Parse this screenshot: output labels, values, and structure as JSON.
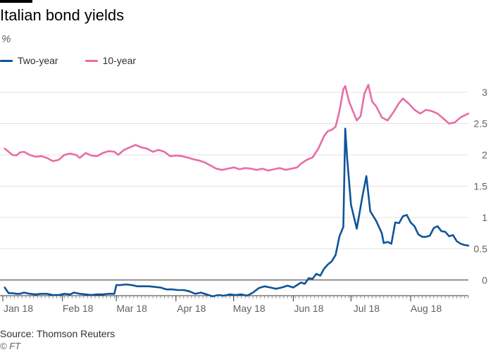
{
  "header": {
    "title": "Italian bond yields",
    "unit": "%"
  },
  "footer": {
    "source": "Source: Thomson Reuters",
    "credit": "© FT"
  },
  "colors": {
    "two_year": "#0f5499",
    "ten_year": "#e86da5",
    "grid": "#e6e2dd",
    "axis_text": "#66605c",
    "zero_line": "#33302e"
  },
  "chart_data": {
    "type": "line",
    "title": "Italian bond yields",
    "ylabel": "%",
    "ylim": [
      -0.25,
      3.35
    ],
    "yticks": [
      0,
      0.5,
      1,
      1.5,
      2,
      2.5,
      3
    ],
    "ytick_labels": [
      "0",
      "0.5",
      "1",
      "1.5",
      "2",
      "2.5",
      "3"
    ],
    "xlim": [
      "2018-01-01",
      "2018-08-31"
    ],
    "xticks": [
      "2018-01-01",
      "2018-02-01",
      "2018-03-01",
      "2018-04-01",
      "2018-05-01",
      "2018-06-01",
      "2018-07-01",
      "2018-08-01"
    ],
    "xtick_labels": [
      "Jan 18",
      "Feb 18",
      "Mar 18",
      "Apr 18",
      "May 18",
      "Jun 18",
      "Jul 18",
      "Aug 18"
    ],
    "grid": true,
    "legend_position": "top-left",
    "series": [
      {
        "name": "Two-year",
        "color": "#0f5499",
        "points": [
          [
            "2018-01-02",
            -0.12
          ],
          [
            "2018-01-04",
            -0.21
          ],
          [
            "2018-01-06",
            -0.21
          ],
          [
            "2018-01-08",
            -0.22
          ],
          [
            "2018-01-10",
            -0.22
          ],
          [
            "2018-01-12",
            -0.2
          ],
          [
            "2018-01-15",
            -0.22
          ],
          [
            "2018-01-18",
            -0.23
          ],
          [
            "2018-01-21",
            -0.22
          ],
          [
            "2018-01-24",
            -0.22
          ],
          [
            "2018-01-27",
            -0.24
          ],
          [
            "2018-01-30",
            -0.24
          ],
          [
            "2018-02-02",
            -0.22
          ],
          [
            "2018-02-05",
            -0.23
          ],
          [
            "2018-02-07",
            -0.2
          ],
          [
            "2018-02-10",
            -0.22
          ],
          [
            "2018-02-13",
            -0.23
          ],
          [
            "2018-02-16",
            -0.24
          ],
          [
            "2018-02-19",
            -0.23
          ],
          [
            "2018-02-22",
            -0.23
          ],
          [
            "2018-02-25",
            -0.22
          ],
          [
            "2018-02-28",
            -0.22
          ],
          [
            "2018-03-01",
            -0.08
          ],
          [
            "2018-03-03",
            -0.08
          ],
          [
            "2018-03-06",
            -0.07
          ],
          [
            "2018-03-09",
            -0.08
          ],
          [
            "2018-03-12",
            -0.1
          ],
          [
            "2018-03-15",
            -0.1
          ],
          [
            "2018-03-18",
            -0.1
          ],
          [
            "2018-03-21",
            -0.11
          ],
          [
            "2018-03-24",
            -0.12
          ],
          [
            "2018-03-27",
            -0.15
          ],
          [
            "2018-03-30",
            -0.15
          ],
          [
            "2018-04-02",
            -0.16
          ],
          [
            "2018-04-05",
            -0.16
          ],
          [
            "2018-04-08",
            -0.18
          ],
          [
            "2018-04-11",
            -0.22
          ],
          [
            "2018-04-14",
            -0.2
          ],
          [
            "2018-04-17",
            -0.23
          ],
          [
            "2018-04-20",
            -0.26
          ],
          [
            "2018-04-23",
            -0.24
          ],
          [
            "2018-04-26",
            -0.25
          ],
          [
            "2018-04-29",
            -0.23
          ],
          [
            "2018-05-02",
            -0.24
          ],
          [
            "2018-05-05",
            -0.23
          ],
          [
            "2018-05-08",
            -0.25
          ],
          [
            "2018-05-11",
            -0.2
          ],
          [
            "2018-05-14",
            -0.13
          ],
          [
            "2018-05-17",
            -0.1
          ],
          [
            "2018-05-20",
            -0.12
          ],
          [
            "2018-05-23",
            -0.14
          ],
          [
            "2018-05-26",
            -0.12
          ],
          [
            "2018-05-29",
            -0.09
          ],
          [
            "2018-06-01",
            -0.12
          ],
          [
            "2018-06-03",
            -0.08
          ],
          [
            "2018-06-05",
            -0.04
          ],
          [
            "2018-06-07",
            -0.06
          ],
          [
            "2018-06-09",
            0.03
          ],
          [
            "2018-06-11",
            0.02
          ],
          [
            "2018-06-13",
            0.1
          ],
          [
            "2018-06-15",
            0.07
          ],
          [
            "2018-06-17",
            0.18
          ],
          [
            "2018-06-19",
            0.25
          ],
          [
            "2018-06-21",
            0.3
          ],
          [
            "2018-06-23",
            0.4
          ],
          [
            "2018-06-24",
            0.55
          ],
          [
            "2018-06-25",
            0.7
          ],
          [
            "2018-06-27",
            0.85
          ],
          [
            "2018-06-28",
            2.42
          ],
          [
            "2018-06-29",
            1.95
          ],
          [
            "2018-07-01",
            1.2
          ],
          [
            "2018-07-04",
            0.82
          ],
          [
            "2018-07-07",
            1.35
          ],
          [
            "2018-07-09",
            1.66
          ],
          [
            "2018-07-11",
            1.1
          ],
          [
            "2018-07-14",
            0.95
          ],
          [
            "2018-07-17",
            0.75
          ],
          [
            "2018-07-18",
            0.59
          ],
          [
            "2018-07-20",
            0.61
          ],
          [
            "2018-07-22",
            0.58
          ],
          [
            "2018-07-24",
            0.92
          ],
          [
            "2018-07-26",
            0.91
          ],
          [
            "2018-07-28",
            1.02
          ],
          [
            "2018-07-30",
            1.04
          ],
          [
            "2018-08-01",
            0.92
          ],
          [
            "2018-08-03",
            0.86
          ],
          [
            "2018-08-05",
            0.73
          ],
          [
            "2018-08-07",
            0.69
          ],
          [
            "2018-08-09",
            0.69
          ],
          [
            "2018-08-11",
            0.71
          ],
          [
            "2018-08-13",
            0.83
          ],
          [
            "2018-08-15",
            0.86
          ],
          [
            "2018-08-17",
            0.78
          ],
          [
            "2018-08-19",
            0.77
          ],
          [
            "2018-08-21",
            0.7
          ],
          [
            "2018-08-23",
            0.72
          ],
          [
            "2018-08-25",
            0.62
          ],
          [
            "2018-08-27",
            0.58
          ],
          [
            "2018-08-29",
            0.56
          ],
          [
            "2018-08-31",
            0.55
          ]
        ]
      },
      {
        "name": "10-year",
        "color": "#e86da5",
        "points": [
          [
            "2018-01-02",
            2.1
          ],
          [
            "2018-01-04",
            2.05
          ],
          [
            "2018-01-06",
            2.0
          ],
          [
            "2018-01-08",
            1.99
          ],
          [
            "2018-01-10",
            2.04
          ],
          [
            "2018-01-12",
            2.05
          ],
          [
            "2018-01-15",
            2.0
          ],
          [
            "2018-01-18",
            1.97
          ],
          [
            "2018-01-21",
            1.98
          ],
          [
            "2018-01-24",
            1.95
          ],
          [
            "2018-01-27",
            1.9
          ],
          [
            "2018-01-30",
            1.92
          ],
          [
            "2018-02-02",
            2.0
          ],
          [
            "2018-02-05",
            2.02
          ],
          [
            "2018-02-08",
            2.0
          ],
          [
            "2018-02-10",
            1.95
          ],
          [
            "2018-02-13",
            2.03
          ],
          [
            "2018-02-16",
            1.99
          ],
          [
            "2018-02-19",
            1.98
          ],
          [
            "2018-02-22",
            2.03
          ],
          [
            "2018-02-25",
            2.06
          ],
          [
            "2018-02-28",
            2.05
          ],
          [
            "2018-03-02",
            2.0
          ],
          [
            "2018-03-05",
            2.08
          ],
          [
            "2018-03-08",
            2.12
          ],
          [
            "2018-03-11",
            2.16
          ],
          [
            "2018-03-14",
            2.12
          ],
          [
            "2018-03-17",
            2.1
          ],
          [
            "2018-03-20",
            2.05
          ],
          [
            "2018-03-23",
            2.08
          ],
          [
            "2018-03-26",
            2.05
          ],
          [
            "2018-03-29",
            1.98
          ],
          [
            "2018-04-01",
            1.99
          ],
          [
            "2018-04-04",
            1.98
          ],
          [
            "2018-04-07",
            1.96
          ],
          [
            "2018-04-10",
            1.93
          ],
          [
            "2018-04-13",
            1.91
          ],
          [
            "2018-04-16",
            1.88
          ],
          [
            "2018-04-19",
            1.83
          ],
          [
            "2018-04-22",
            1.78
          ],
          [
            "2018-04-25",
            1.76
          ],
          [
            "2018-04-28",
            1.78
          ],
          [
            "2018-05-01",
            1.8
          ],
          [
            "2018-05-04",
            1.77
          ],
          [
            "2018-05-07",
            1.79
          ],
          [
            "2018-05-10",
            1.78
          ],
          [
            "2018-05-13",
            1.76
          ],
          [
            "2018-05-16",
            1.78
          ],
          [
            "2018-05-19",
            1.75
          ],
          [
            "2018-05-22",
            1.77
          ],
          [
            "2018-05-25",
            1.79
          ],
          [
            "2018-05-28",
            1.76
          ],
          [
            "2018-05-31",
            1.78
          ],
          [
            "2018-06-03",
            1.8
          ],
          [
            "2018-06-05",
            1.86
          ],
          [
            "2018-06-08",
            1.92
          ],
          [
            "2018-06-11",
            1.96
          ],
          [
            "2018-06-14",
            2.1
          ],
          [
            "2018-06-17",
            2.3
          ],
          [
            "2018-06-19",
            2.38
          ],
          [
            "2018-06-21",
            2.4
          ],
          [
            "2018-06-23",
            2.45
          ],
          [
            "2018-06-25",
            2.7
          ],
          [
            "2018-06-27",
            3.05
          ],
          [
            "2018-06-28",
            3.1
          ],
          [
            "2018-06-30",
            2.85
          ],
          [
            "2018-07-02",
            2.7
          ],
          [
            "2018-07-04",
            2.55
          ],
          [
            "2018-07-06",
            2.62
          ],
          [
            "2018-07-08",
            2.98
          ],
          [
            "2018-07-10",
            3.12
          ],
          [
            "2018-07-12",
            2.85
          ],
          [
            "2018-07-14",
            2.78
          ],
          [
            "2018-07-17",
            2.6
          ],
          [
            "2018-07-20",
            2.55
          ],
          [
            "2018-07-23",
            2.68
          ],
          [
            "2018-07-26",
            2.83
          ],
          [
            "2018-07-28",
            2.9
          ],
          [
            "2018-07-31",
            2.82
          ],
          [
            "2018-08-03",
            2.72
          ],
          [
            "2018-08-06",
            2.66
          ],
          [
            "2018-08-09",
            2.72
          ],
          [
            "2018-08-12",
            2.7
          ],
          [
            "2018-08-15",
            2.66
          ],
          [
            "2018-08-18",
            2.58
          ],
          [
            "2018-08-21",
            2.5
          ],
          [
            "2018-08-24",
            2.52
          ],
          [
            "2018-08-27",
            2.6
          ],
          [
            "2018-08-31",
            2.66
          ]
        ]
      }
    ]
  }
}
